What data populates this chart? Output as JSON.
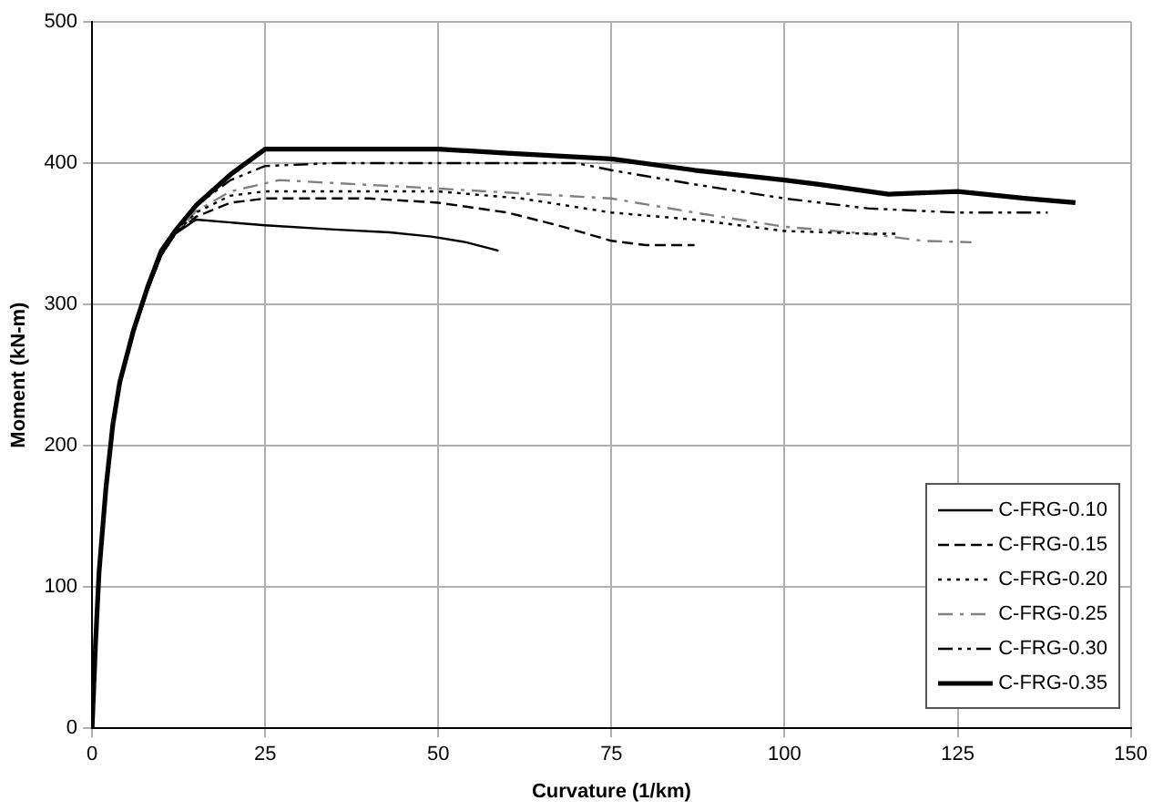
{
  "chart_data": {
    "type": "line",
    "xlabel": "Curvature (1/km)",
    "ylabel": "Moment (kN-m)",
    "xlim": [
      0,
      150
    ],
    "xticks": [
      0,
      25,
      50,
      75,
      100,
      125,
      150
    ],
    "ylim": [
      0,
      500
    ],
    "yticks": [
      0,
      100,
      200,
      300,
      400,
      500
    ],
    "grid": true,
    "legend": "bottom right",
    "marker": "none",
    "series": [
      {
        "name": "C-FRG-0.10",
        "color": "#000000",
        "line_style": "solid",
        "x": [
          0,
          0.5,
          1,
          2,
          3,
          4,
          6,
          8,
          10,
          12,
          15,
          20,
          25,
          35,
          43,
          49,
          54,
          58.7
        ],
        "values": [
          0,
          60,
          110,
          170,
          215,
          245,
          280,
          310,
          335,
          350,
          360,
          358,
          356,
          353,
          351,
          348,
          344,
          338
        ]
      },
      {
        "name": "C-FRG-0.15",
        "color": "#000000",
        "line_style": "dashed",
        "x": [
          0,
          0.5,
          1,
          2,
          3,
          4,
          6,
          8,
          10,
          12,
          15,
          20,
          25,
          40,
          50,
          60,
          68,
          75,
          80,
          87
        ],
        "values": [
          0,
          60,
          110,
          170,
          215,
          245,
          280,
          310,
          335,
          350,
          362,
          372,
          375,
          375,
          372,
          365,
          355,
          345,
          342,
          342
        ]
      },
      {
        "name": "C-FRG-0.20",
        "color": "#000000",
        "line_style": "dotted",
        "x": [
          0,
          0.5,
          1,
          2,
          3,
          4,
          6,
          8,
          10,
          12,
          15,
          20,
          25,
          50,
          62,
          75,
          87,
          100,
          112,
          116
        ],
        "values": [
          0,
          60,
          110,
          170,
          215,
          245,
          280,
          310,
          335,
          350,
          365,
          377,
          380,
          380,
          375,
          365,
          360,
          352,
          350,
          350
        ]
      },
      {
        "name": "C-FRG-0.25",
        "color": "#808080",
        "line_style": "dashdot",
        "x": [
          0,
          0.5,
          1,
          2,
          3,
          4,
          6,
          8,
          10,
          12,
          15,
          20,
          27,
          50,
          75,
          87,
          100,
          112,
          120,
          127
        ],
        "values": [
          0,
          60,
          110,
          170,
          215,
          245,
          280,
          310,
          335,
          350,
          366,
          380,
          388,
          382,
          375,
          365,
          355,
          350,
          345,
          344
        ]
      },
      {
        "name": "C-FRG-0.30",
        "color": "#000000",
        "line_style": "dashdotdot",
        "x": [
          0,
          0.5,
          1,
          2,
          3,
          4,
          6,
          8,
          10,
          12,
          15,
          20,
          25,
          35,
          70,
          75,
          87,
          100,
          112,
          125,
          138
        ],
        "values": [
          0,
          60,
          110,
          170,
          215,
          245,
          280,
          310,
          335,
          350,
          370,
          388,
          398,
          400,
          400,
          395,
          385,
          375,
          368,
          365,
          365
        ]
      },
      {
        "name": "C-FRG-0.35",
        "color": "#000000",
        "line_style": "solid",
        "x": [
          0,
          0.5,
          1,
          2,
          3,
          4,
          6,
          8,
          10,
          12,
          15,
          20,
          25,
          50,
          60,
          75,
          87,
          100,
          105,
          115,
          125,
          135,
          142
        ],
        "values": [
          0,
          60,
          110,
          170,
          215,
          245,
          282,
          312,
          338,
          352,
          370,
          392,
          410,
          410,
          407,
          403,
          395,
          388,
          385,
          378,
          380,
          375,
          372
        ]
      }
    ]
  }
}
